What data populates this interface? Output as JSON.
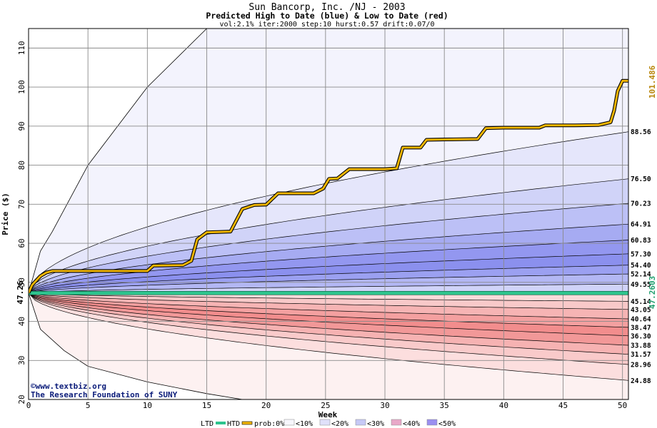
{
  "chart_data": {
    "type": "area",
    "title": "Sun Bancorp, Inc. /NJ - 2003",
    "subtitle": "Predicted High to Date (blue) &  Low to Date (red)",
    "params": "vol:2.1% iter:2000 step:10 hurst:0.57 drift:0.07/0",
    "xlabel": "Week",
    "ylabel": "Price ($)",
    "xlim": [
      0,
      50.5
    ],
    "ylim": [
      20,
      115
    ],
    "xticks": [
      0,
      5,
      10,
      15,
      20,
      25,
      30,
      35,
      40,
      45,
      50
    ],
    "yticks": [
      20,
      30,
      40,
      50,
      60,
      70,
      80,
      90,
      100,
      110
    ],
    "grid": true,
    "start_price": 47.26,
    "start_label": "47.26",
    "ltd_value": 47.2603,
    "ltd_label": "47.2603",
    "htd_final": 101.486,
    "htd_label": "101.486",
    "htd_color": "#f5b800",
    "ltd_color": "#2ec48e",
    "envelope": {
      "x": [
        0,
        1,
        2,
        5,
        10,
        15
      ],
      "y": [
        47.26,
        58,
        63,
        80,
        100,
        115
      ],
      "lower_x": [
        0,
        1,
        3,
        5,
        10,
        15,
        18
      ],
      "lower_y": [
        47.26,
        38,
        32.5,
        28.5,
        24.5,
        21.5,
        20
      ]
    },
    "htd_path": {
      "x": [
        0,
        0.3,
        0.6,
        1,
        1.5,
        2,
        5,
        8,
        10,
        10.5,
        13,
        13.7,
        14.2,
        15,
        16,
        17,
        18,
        19,
        20,
        21,
        22,
        24,
        24.8,
        25.3,
        26,
        27,
        30,
        31,
        31.5,
        33,
        33.5,
        35,
        37.8,
        38.5,
        40,
        43,
        43.5,
        46,
        48,
        49,
        49.3,
        49.6,
        50,
        50.5
      ],
      "y": [
        47.3,
        49.3,
        50.3,
        51.6,
        52.5,
        52.9,
        52.9,
        52.9,
        52.9,
        54.3,
        54.4,
        55.5,
        61,
        62.8,
        62.9,
        63,
        68.8,
        69.8,
        69.9,
        72.8,
        72.8,
        72.8,
        74,
        76.5,
        76.6,
        79,
        79,
        79.2,
        84.5,
        84.5,
        86.5,
        86.6,
        86.7,
        89.5,
        89.6,
        89.6,
        90.2,
        90.2,
        90.3,
        91,
        94,
        99,
        101.6,
        101.6
      ]
    },
    "upper_band_finals": [
      88.56,
      76.5,
      70.23,
      64.91,
      60.83,
      57.3,
      54.4,
      52.14,
      49.55
    ],
    "upper_band_labels": [
      "88.56",
      "76.50",
      "70.23",
      "64.91",
      "60.83",
      "57.30",
      "54.40",
      "52.14",
      "49.55"
    ],
    "lower_band_finals": [
      45.14,
      43.05,
      40.64,
      38.47,
      36.3,
      33.88,
      31.57,
      28.96,
      24.88
    ],
    "lower_band_labels": [
      "45.14",
      "43.05",
      "40.64",
      "38.47",
      "36.30",
      "33.88",
      "31.57",
      "28.96",
      "24.88"
    ],
    "upper_band_fills": [
      "#e5e6fb",
      "#d0d3f8",
      "#bcc0f6",
      "#a6abf2",
      "#9397f0",
      "#8b90ee",
      "#9ba0f1",
      "#b3b7f4",
      "#d0d3f8"
    ],
    "lower_band_fills": [
      "#fbdada",
      "#f8c9c9",
      "#f6b4b4",
      "#f4a0a0",
      "#f28d8d",
      "#f29898",
      "#f6b2b2",
      "#f9caca",
      "#fcdede"
    ],
    "envelope_fill_top": "#f3f3fd",
    "envelope_fill_bottom": "#fdf1f1",
    "legend": {
      "ltd": "LTD",
      "htd": "HTD",
      "prob": "prob:0%",
      "items": [
        "<10%",
        "<20%",
        "<30%",
        "<40%",
        "<50%"
      ],
      "colors": [
        "#f7f7fd",
        "#e0e1fa",
        "#c6c9f6",
        "#e9a8c8",
        "#9b8ff0"
      ]
    },
    "watermark": {
      "line1": "©www.textbiz.org",
      "line2": "The Research Foundation of SUNY"
    }
  }
}
